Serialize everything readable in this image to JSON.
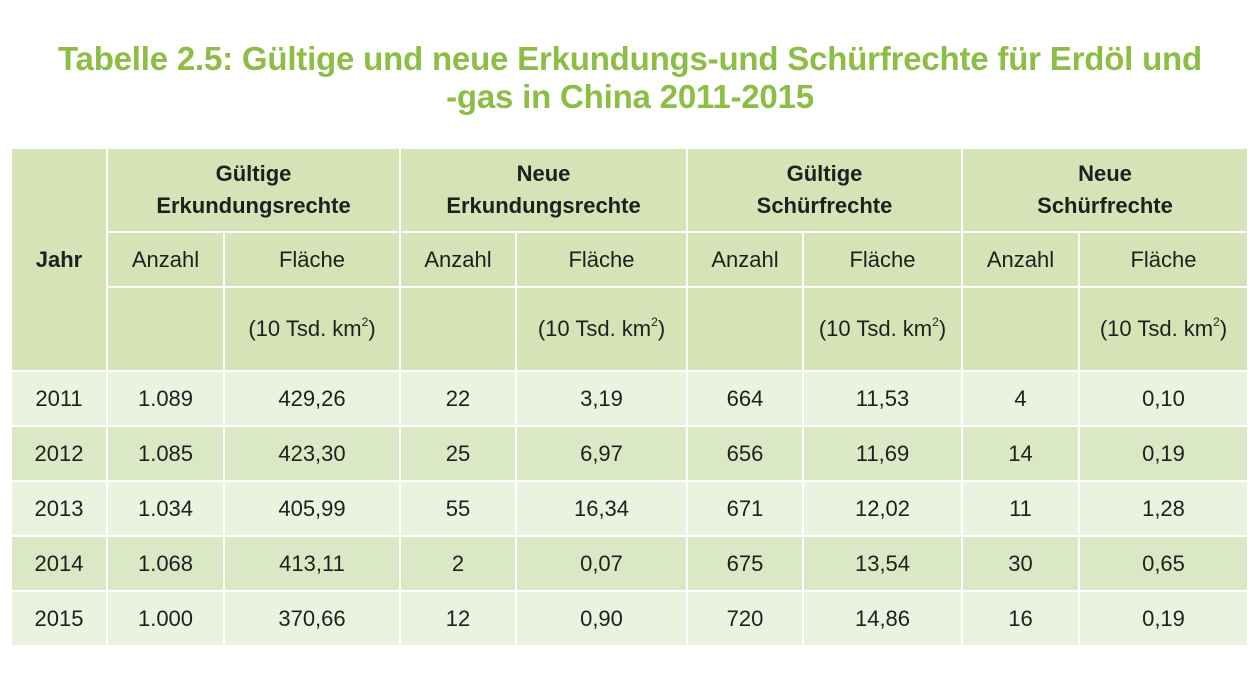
{
  "title": {
    "line1": "Tabelle 2.5: Gültige und neue Erkundungs-und Schürfrechte für Erdöl und",
    "line2": "-gas in China 2011-2015"
  },
  "header": {
    "year": "Jahr",
    "groups": [
      {
        "line1": "Gültige",
        "line2": "Erkundungsrechte"
      },
      {
        "line1": "Neue",
        "line2": "Erkundungsrechte"
      },
      {
        "line1": "Gültige",
        "line2": "Schürfrechte"
      },
      {
        "line1": "Neue",
        "line2": "Schürfrechte"
      }
    ],
    "count": "Anzahl",
    "area": "Fläche",
    "unit_prefix": "(10 Tsd. km",
    "unit_sup": "2",
    "unit_suffix": ")"
  },
  "rows": [
    {
      "year": "2011",
      "cells": [
        "1.089",
        "429,26",
        "22",
        "3,19",
        "664",
        "11,53",
        "4",
        "0,10"
      ]
    },
    {
      "year": "2012",
      "cells": [
        "1.085",
        "423,30",
        "25",
        "6,97",
        "656",
        "11,69",
        "14",
        "0,19"
      ]
    },
    {
      "year": "2013",
      "cells": [
        "1.034",
        "405,99",
        "55",
        "16,34",
        "671",
        "12,02",
        "11",
        "1,28"
      ]
    },
    {
      "year": "2014",
      "cells": [
        "1.068",
        "413,11",
        "2",
        "0,07",
        "675",
        "13,54",
        "30",
        "0,65"
      ]
    },
    {
      "year": "2015",
      "cells": [
        "1.000",
        "370,66",
        "12",
        "0,90",
        "720",
        "14,86",
        "16",
        "0,19"
      ]
    }
  ]
}
